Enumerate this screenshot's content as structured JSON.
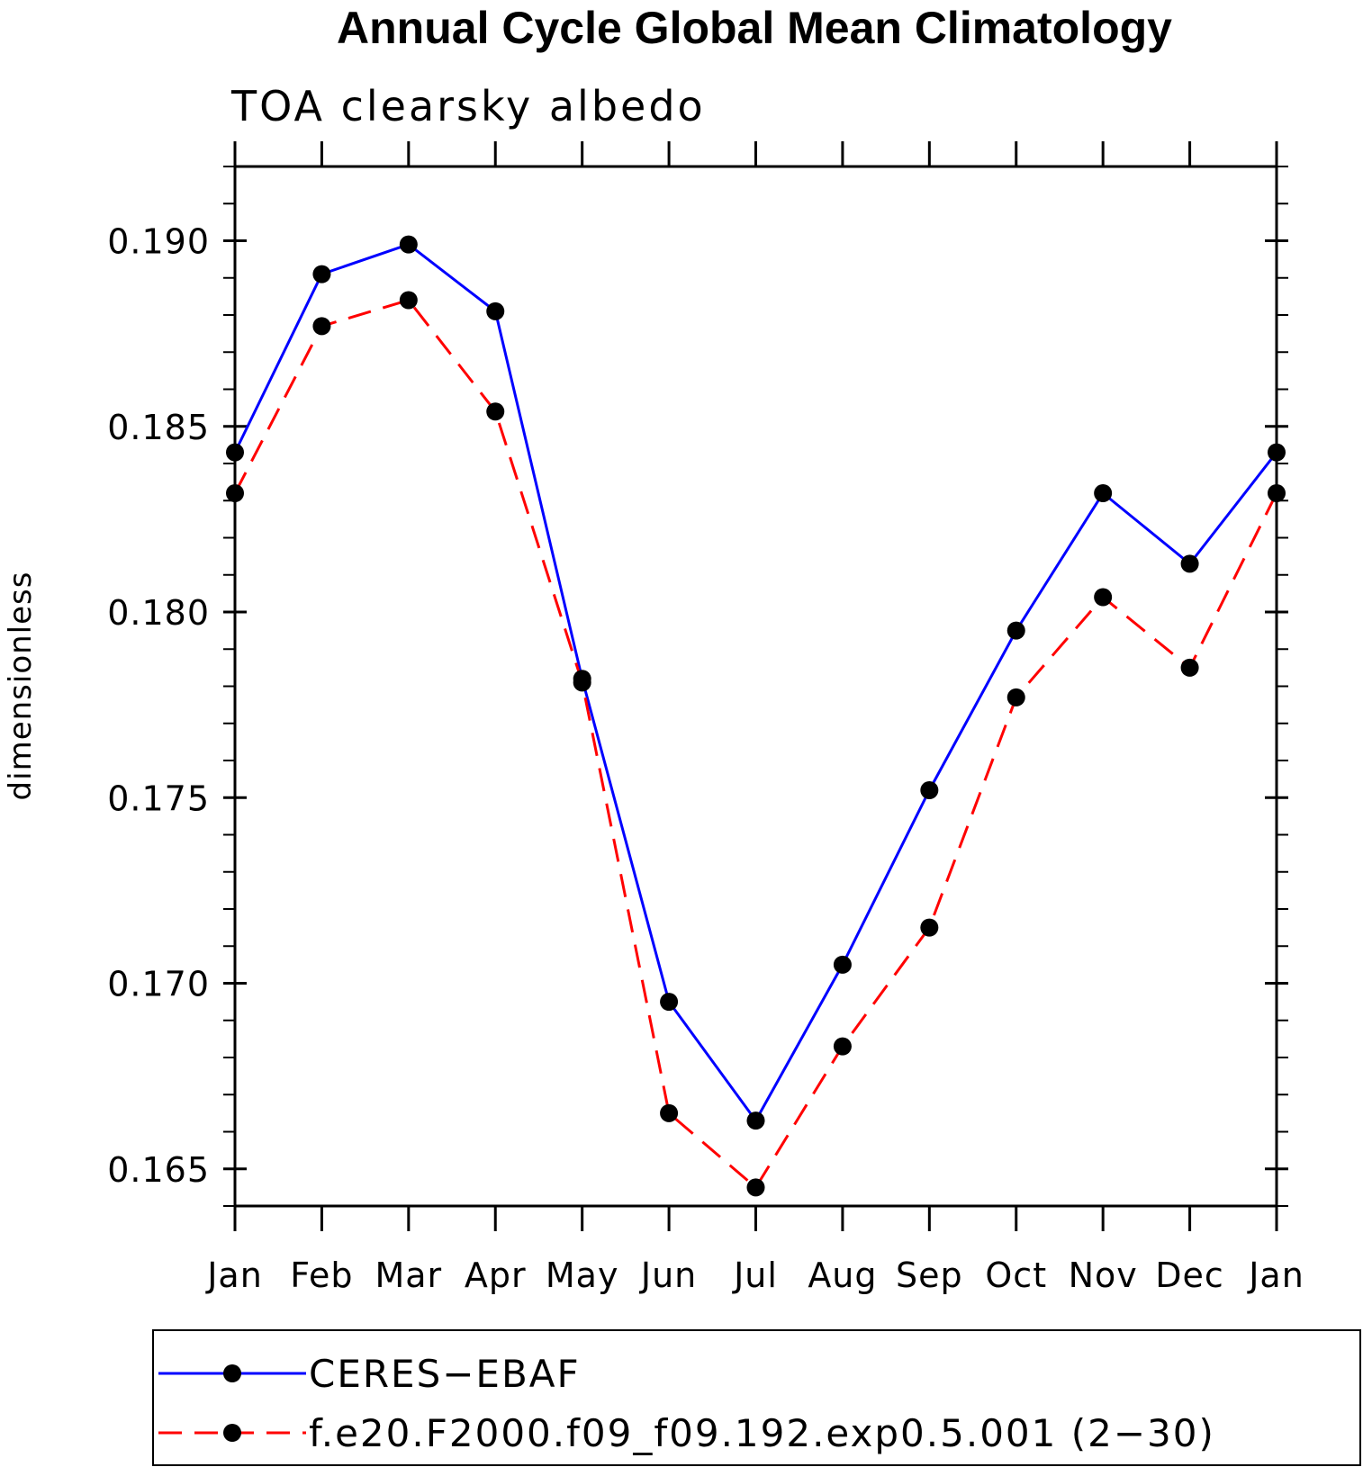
{
  "chart_data": {
    "type": "line",
    "title": "Annual Cycle Global Mean Climatology",
    "subtitle": "TOA clearsky albedo",
    "xlabel": "",
    "ylabel": "dimensionless",
    "categories": [
      "Jan",
      "Feb",
      "Mar",
      "Apr",
      "May",
      "Jun",
      "Jul",
      "Aug",
      "Sep",
      "Oct",
      "Nov",
      "Dec",
      "Jan"
    ],
    "ylim": [
      0.164,
      0.192
    ],
    "yticks": [
      0.165,
      0.17,
      0.175,
      0.18,
      0.185,
      0.19
    ],
    "ytick_labels": [
      "0.165",
      "0.170",
      "0.175",
      "0.180",
      "0.185",
      "0.190"
    ],
    "yminor_step": 0.001,
    "grid": false,
    "legend_position": "bottom",
    "series": [
      {
        "name": "CERES−EBAF",
        "color": "#0000ff",
        "dash": "solid",
        "values": [
          0.1843,
          0.1891,
          0.1899,
          0.1881,
          0.1782,
          0.1695,
          0.1663,
          0.1705,
          0.1752,
          0.1795,
          0.1832,
          0.1813,
          0.1843
        ]
      },
      {
        "name": "f.e20.F2000.f09_f09.192.exp0.5.001 (2−30)",
        "color": "#ff0000",
        "dash": "dashed",
        "values": [
          0.1832,
          0.1877,
          0.1884,
          0.1854,
          0.1781,
          0.1665,
          0.1645,
          0.1683,
          0.1715,
          0.1777,
          0.1804,
          0.1785,
          0.1832
        ]
      }
    ]
  }
}
